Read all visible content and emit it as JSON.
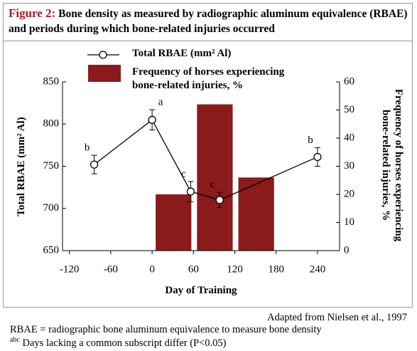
{
  "figure_label": "Figure 2:",
  "title": "Bone density as measured by radiographic aluminum equivalence (RBAE) and periods during which bone-related injuries occurred",
  "chart_data": {
    "type": "bar-line",
    "xlabel": "Day of Training",
    "ylabel": "Total RBAE (mm² Al)",
    "y2label": "Frequency of horses experiencing bone-related injuries, %",
    "xlim": [
      -130,
      272
    ],
    "xticks": [
      -120,
      -60,
      0,
      60,
      120,
      180,
      240
    ],
    "ylim": [
      650,
      850
    ],
    "yticks": [
      650,
      700,
      750,
      800,
      850
    ],
    "y2lim": [
      0,
      60
    ],
    "y2ticks": [
      0,
      10,
      20,
      30,
      40,
      50,
      60
    ],
    "line": {
      "name": "Total RBAE (mm² Al)",
      "color": "#000000",
      "x": [
        -84,
        0,
        56,
        98,
        240
      ],
      "values": [
        752,
        805,
        720,
        710,
        761
      ],
      "errors": [
        11,
        12,
        12,
        9,
        11
      ],
      "value_labels": [
        "b",
        "a",
        "c",
        "c",
        "b"
      ]
    },
    "bars": {
      "name": "Frequency of horses experiencing bone-related injuries, %",
      "color": "#8b1a1a",
      "axis": "y2",
      "bins": [
        0,
        60,
        120,
        180
      ],
      "values": [
        20,
        52,
        26
      ]
    }
  },
  "source": "Adapted from Nielsen et al., 1997",
  "notes": [
    "RBAE = radiographic bone aluminum equivalence to measure bone density"
  ],
  "footnote": {
    "superscript": "abc",
    "text": " Days lacking a common subscript differ (P<0.05)"
  }
}
